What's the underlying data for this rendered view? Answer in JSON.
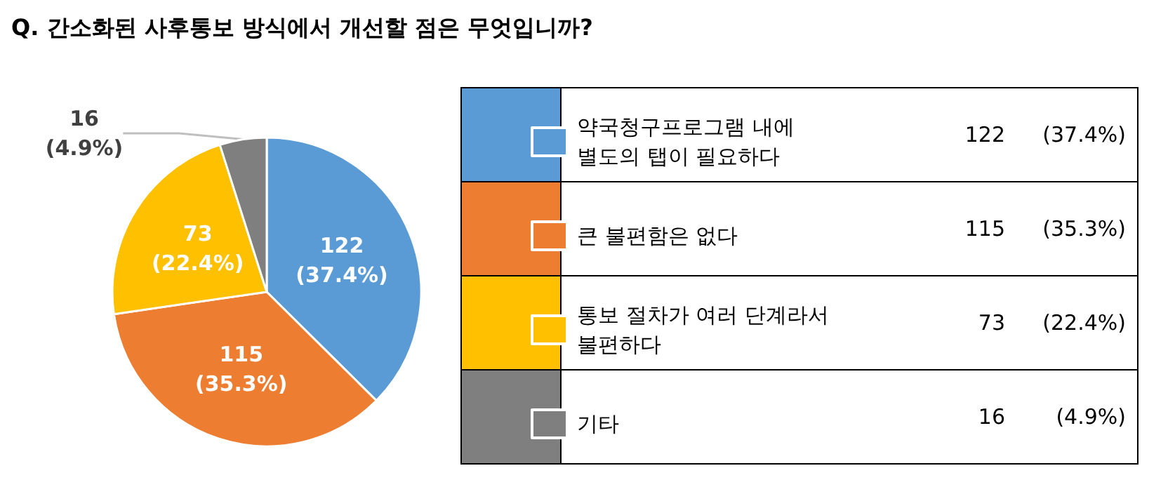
{
  "chart_data": {
    "type": "pie",
    "title": "Q. 간소화된 사후통보 방식에서 개선할 점은 무엇입니까?",
    "categories": [
      "약국청구프로그램 내에\n별도의 탭이 필요하다",
      "큰 불편함은 없다",
      "통보 절차가 여러 단계라서\n불편하다",
      "기타"
    ],
    "values": [
      122,
      115,
      73,
      16
    ],
    "colors": [
      "#5b9bd5",
      "#ed7d31",
      "#ffc000",
      "#7f7f7f"
    ],
    "value_labels": [
      "122\n(37.4%)",
      "115\n(35.3%)",
      "73\n(22.4%)",
      "16\n(4.9%)"
    ],
    "legend": "right"
  }
}
